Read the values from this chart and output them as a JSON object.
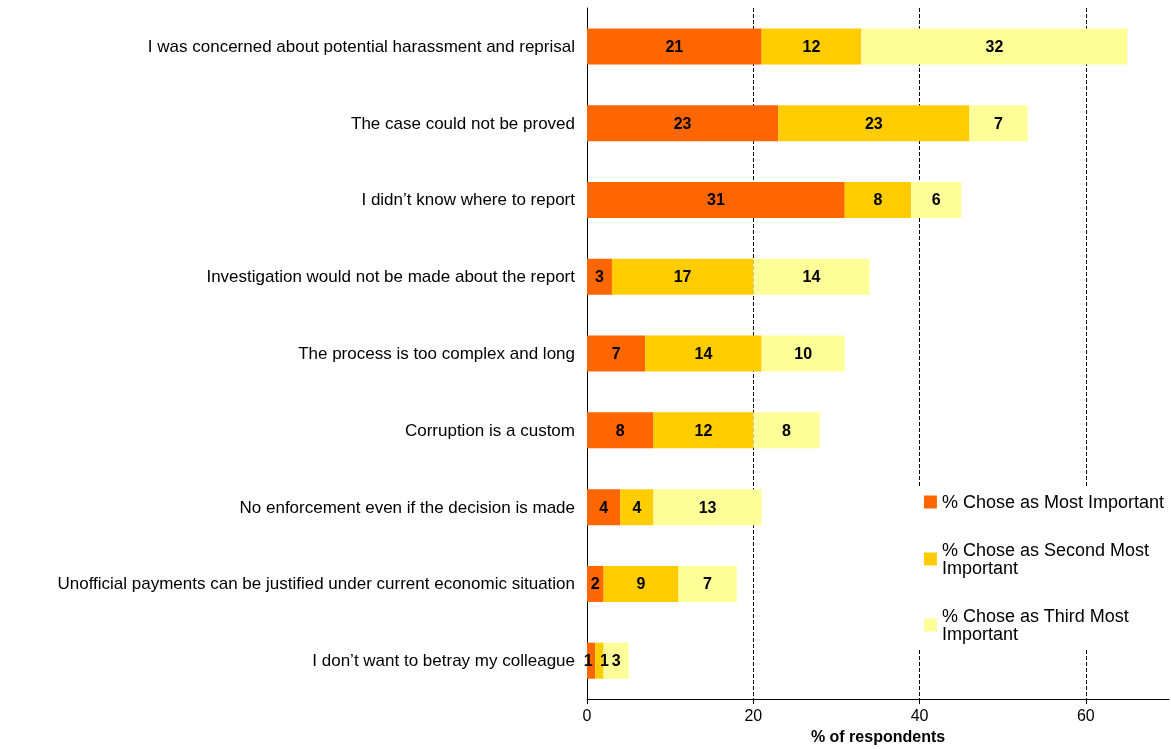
{
  "chart_data": {
    "type": "bar",
    "orientation": "horizontal",
    "stacked": true,
    "xlabel": "% of respondents",
    "categories": [
      "I was concerned about potential harassment and reprisal",
      "The case could not be proved",
      "I didn’t know where to report",
      "Investigation would not be made about the report",
      "The process is too complex and long",
      "Corruption is a custom",
      "No enforcement even if the decision is made",
      "Unofficial payments can be justified under current economic situation",
      "I don’t want to betray my colleague"
    ],
    "series": [
      {
        "name": "% Chose as Most Important",
        "color": "#ff6600",
        "values": [
          21,
          23,
          31,
          3,
          7,
          8,
          4,
          2,
          1
        ]
      },
      {
        "name": "% Chose as Second Most Important",
        "color": "#ffcc00",
        "values": [
          12,
          23,
          8,
          17,
          14,
          12,
          4,
          9,
          1
        ]
      },
      {
        "name": "% Chose as Third Most Important",
        "color": "#ffff99",
        "values": [
          32,
          7,
          6,
          14,
          10,
          8,
          13,
          7,
          3
        ]
      }
    ],
    "xlim": [
      0,
      70
    ],
    "xticks": [
      0,
      20,
      40,
      60
    ],
    "grid": "x",
    "legend": "right",
    "data_labels": true
  }
}
